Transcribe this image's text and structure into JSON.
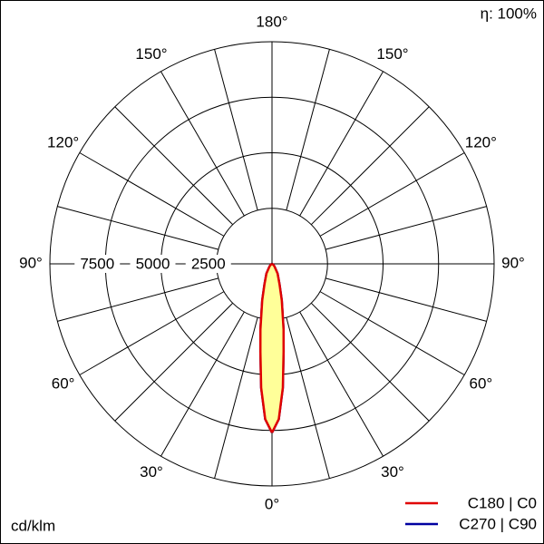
{
  "chart_data": {
    "type": "polar",
    "efficiency": "η: 100%",
    "unit_label": "cd/klm",
    "rlim": [
      0,
      10000
    ],
    "rticks": [
      2500,
      5000,
      7500
    ],
    "angle_grid": [
      0,
      15,
      30,
      45,
      60,
      75,
      90,
      105,
      120,
      135,
      150,
      165,
      180
    ],
    "angle_ticks": [
      {
        "value": 0,
        "label": "0°"
      },
      {
        "value": 30,
        "label": "30°"
      },
      {
        "value": 60,
        "label": "60°"
      },
      {
        "value": 90,
        "label": "90°"
      },
      {
        "value": 120,
        "label": "120°"
      },
      {
        "value": 150,
        "label": "150°"
      },
      {
        "value": 180,
        "label": "180°"
      }
    ],
    "fill_color": "#ffff99",
    "gamma": [
      0,
      2.5,
      5,
      7.5,
      10,
      15,
      20,
      30,
      45,
      60,
      90
    ],
    "series": [
      {
        "name": "C270 | C90",
        "color": "#0000a0",
        "values": [
          7600,
          7000,
          5600,
          4000,
          3000,
          1700,
          1000,
          500,
          150,
          50,
          0
        ]
      },
      {
        "name": "C180 | C0",
        "color": "#e00000",
        "values": [
          7600,
          7000,
          5600,
          4000,
          3000,
          1700,
          1000,
          500,
          150,
          50,
          0
        ]
      }
    ]
  }
}
